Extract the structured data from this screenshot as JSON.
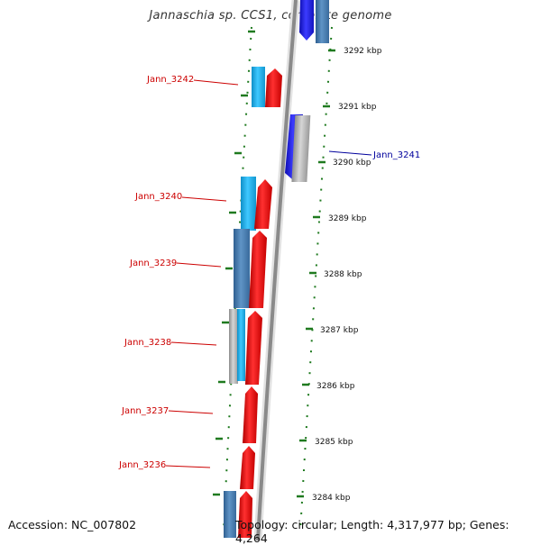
{
  "title": "Jannaschia sp. CCS1, complete genome",
  "footer": {
    "accession": "Accession: NC_007802",
    "topology": "Topology: circular; Length: 4,317,977 bp; Genes: 4,264"
  },
  "colors": {
    "backbone": "#8a8a8a",
    "ruler": "#1f7a1f",
    "left_label": "#cc0000",
    "right_label": "#00009c",
    "gene_red": "#ee1111",
    "gene_cyan": "#1ab0ea",
    "gene_steel": "#4a7fb2",
    "gene_gray": "#a8a8a8",
    "gene_blue": "#1f1fe0"
  },
  "scale": {
    "labels": [
      "3292 kbp",
      "3291 kbp",
      "3290 kbp",
      "3289 kbp",
      "3288 kbp",
      "3287 kbp",
      "3286 kbp",
      "3285 kbp",
      "3284 kbp"
    ]
  },
  "genes": {
    "labels": [
      {
        "name": "Jann_3242",
        "side": "left"
      },
      {
        "name": "Jann_3241",
        "side": "right"
      },
      {
        "name": "Jann_3240",
        "side": "left"
      },
      {
        "name": "Jann_3239",
        "side": "left"
      },
      {
        "name": "Jann_3238",
        "side": "left"
      },
      {
        "name": "Jann_3237",
        "side": "left"
      },
      {
        "name": "Jann_3236",
        "side": "left"
      }
    ]
  }
}
